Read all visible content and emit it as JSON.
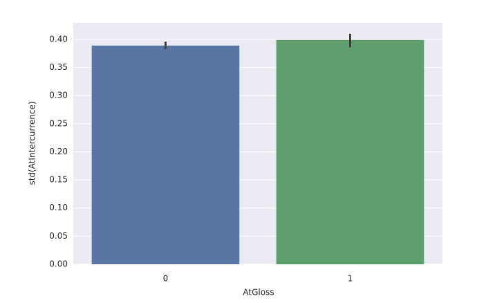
{
  "chart_data": {
    "type": "bar",
    "x_label": "AtGloss",
    "y_label": "std(AtIntercurrence)",
    "categories": [
      "0",
      "1"
    ],
    "values": [
      0.389,
      0.399
    ],
    "ci": [
      [
        0.383,
        0.396
      ],
      [
        0.386,
        0.41
      ]
    ],
    "colors": [
      "#5975a4",
      "#5f9e6e"
    ],
    "error_color": "#3f3f3f",
    "ylim": [
      0,
      0.4295
    ],
    "yticks": [
      {
        "value": 0,
        "label": "0.00"
      },
      {
        "value": 0.05,
        "label": "0.05"
      },
      {
        "value": 0.1,
        "label": "0.10"
      },
      {
        "value": 0.15,
        "label": "0.15"
      },
      {
        "value": 0.2,
        "label": "0.20"
      },
      {
        "value": 0.25,
        "label": "0.25"
      },
      {
        "value": 0.3,
        "label": "0.30"
      },
      {
        "value": 0.35,
        "label": "0.35"
      },
      {
        "value": 0.4,
        "label": "0.40"
      }
    ],
    "grid": true
  }
}
